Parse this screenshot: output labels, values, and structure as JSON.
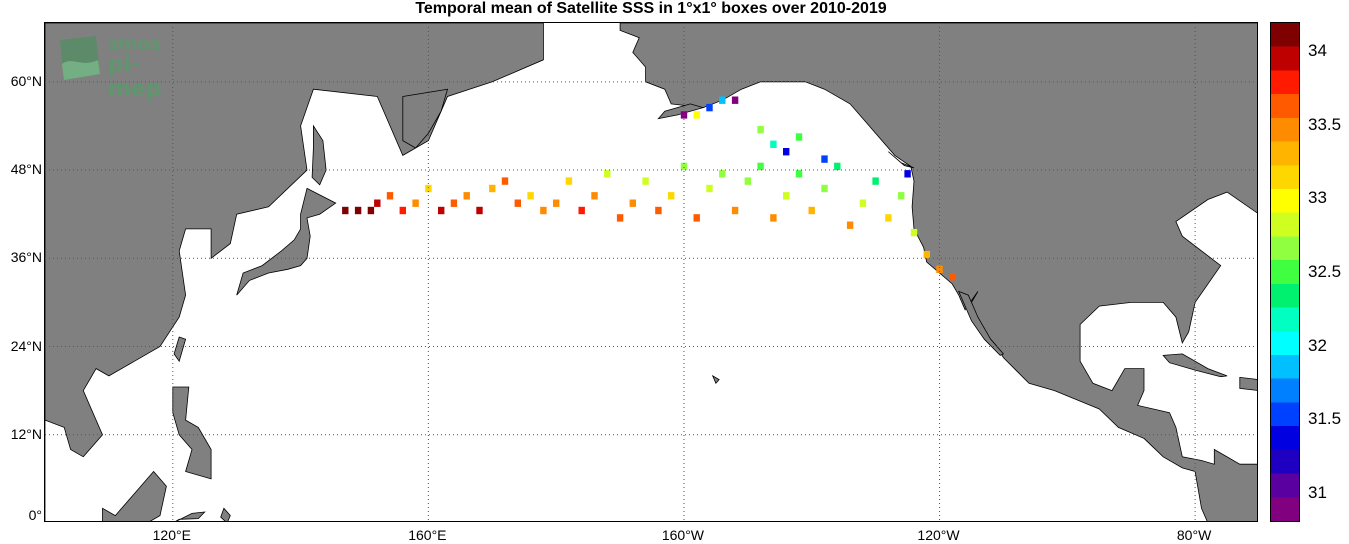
{
  "title": "Temporal mean of Satellite SSS in 1°x1° boxes over 2010-2019",
  "logo": {
    "line1": "smos",
    "line2": "pi-mep"
  },
  "lat_labels": [
    "60°N",
    "48°N",
    "36°N",
    "24°N",
    "12°N",
    "0°"
  ],
  "lon_labels": [
    "120°E",
    "160°E",
    "160°W",
    "120°W",
    "80°W"
  ],
  "colorbar": {
    "ticks": [
      "34",
      "33.5",
      "33",
      "32.5",
      "32",
      "31.5",
      "31"
    ],
    "colors": [
      "#7f0000",
      "#bf0000",
      "#ff1a00",
      "#ff5a00",
      "#ff8c00",
      "#ffb400",
      "#ffd700",
      "#ffff00",
      "#cfff20",
      "#90ff40",
      "#40ff40",
      "#00f070",
      "#00ffc0",
      "#00ffff",
      "#00c0ff",
      "#0080ff",
      "#0040ff",
      "#0000e0",
      "#2000c0",
      "#5a00a0",
      "#800080"
    ]
  },
  "colors": {
    "land": "#808080",
    "ocean": "#ffffff",
    "grid": "#555555"
  },
  "chart_data": {
    "type": "heatmap",
    "title": "Temporal mean of Satellite SSS in 1°x1° boxes over 2010-2019",
    "variable": "Satellite SSS (temporal mean)",
    "period": "2010-2019",
    "grid_resolution_deg": 1,
    "colorbar_range": [
      30.8,
      34.2
    ],
    "extent": {
      "lon_min": 100,
      "lon_max": 290,
      "lat_min": 0,
      "lat_max": 68
    },
    "lat_ticks": [
      0,
      12,
      24,
      36,
      48,
      60
    ],
    "lon_ticks": [
      120,
      160,
      200,
      240,
      280
    ],
    "points": [
      {
        "lon": 147,
        "lat": 42.5,
        "sss": 34.2
      },
      {
        "lon": 149,
        "lat": 42.5,
        "sss": 34.2
      },
      {
        "lon": 151,
        "lat": 42.5,
        "sss": 34.1
      },
      {
        "lon": 152,
        "lat": 43.5,
        "sss": 33.9
      },
      {
        "lon": 154,
        "lat": 44.5,
        "sss": 33.6
      },
      {
        "lon": 156,
        "lat": 42.5,
        "sss": 33.8
      },
      {
        "lon": 158,
        "lat": 43.5,
        "sss": 33.4
      },
      {
        "lon": 160,
        "lat": 45.5,
        "sss": 33.2
      },
      {
        "lon": 162,
        "lat": 42.5,
        "sss": 33.9
      },
      {
        "lon": 164,
        "lat": 43.5,
        "sss": 33.6
      },
      {
        "lon": 166,
        "lat": 44.5,
        "sss": 33.5
      },
      {
        "lon": 168,
        "lat": 42.5,
        "sss": 33.9
      },
      {
        "lon": 170,
        "lat": 45.5,
        "sss": 33.3
      },
      {
        "lon": 172,
        "lat": 46.5,
        "sss": 33.6
      },
      {
        "lon": 174,
        "lat": 43.5,
        "sss": 33.7
      },
      {
        "lon": 176,
        "lat": 44.5,
        "sss": 33.2
      },
      {
        "lon": 178,
        "lat": 42.5,
        "sss": 33.5
      },
      {
        "lon": 180,
        "lat": 43.5,
        "sss": 33.4
      },
      {
        "lon": 182,
        "lat": 46.5,
        "sss": 33.1
      },
      {
        "lon": 184,
        "lat": 42.5,
        "sss": 33.8
      },
      {
        "lon": 186,
        "lat": 44.5,
        "sss": 33.4
      },
      {
        "lon": 188,
        "lat": 47.5,
        "sss": 32.9
      },
      {
        "lon": 190,
        "lat": 41.5,
        "sss": 33.7
      },
      {
        "lon": 192,
        "lat": 43.5,
        "sss": 33.5
      },
      {
        "lon": 194,
        "lat": 46.5,
        "sss": 32.8
      },
      {
        "lon": 196,
        "lat": 42.5,
        "sss": 33.6
      },
      {
        "lon": 198,
        "lat": 44.5,
        "sss": 33.2
      },
      {
        "lon": 200,
        "lat": 48.5,
        "sss": 32.7
      },
      {
        "lon": 202,
        "lat": 41.5,
        "sss": 33.6
      },
      {
        "lon": 204,
        "lat": 45.5,
        "sss": 32.9
      },
      {
        "lon": 206,
        "lat": 47.5,
        "sss": 32.6
      },
      {
        "lon": 208,
        "lat": 42.5,
        "sss": 33.4
      },
      {
        "lon": 210,
        "lat": 46.5,
        "sss": 32.7
      },
      {
        "lon": 212,
        "lat": 48.5,
        "sss": 32.5
      },
      {
        "lon": 214,
        "lat": 41.5,
        "sss": 33.5
      },
      {
        "lon": 216,
        "lat": 44.5,
        "sss": 32.9
      },
      {
        "lon": 218,
        "lat": 47.5,
        "sss": 32.5
      },
      {
        "lon": 220,
        "lat": 42.5,
        "sss": 33.3
      },
      {
        "lon": 222,
        "lat": 45.5,
        "sss": 32.6
      },
      {
        "lon": 224,
        "lat": 48.5,
        "sss": 32.3
      },
      {
        "lon": 226,
        "lat": 40.5,
        "sss": 33.4
      },
      {
        "lon": 228,
        "lat": 43.5,
        "sss": 32.9
      },
      {
        "lon": 230,
        "lat": 46.5,
        "sss": 32.4
      },
      {
        "lon": 232,
        "lat": 41.5,
        "sss": 33.1
      },
      {
        "lon": 234,
        "lat": 44.5,
        "sss": 32.6
      },
      {
        "lon": 235,
        "lat": 47.5,
        "sss": 31.4
      },
      {
        "lon": 236,
        "lat": 39.5,
        "sss": 32.9
      },
      {
        "lon": 238,
        "lat": 36.5,
        "sss": 33.3
      },
      {
        "lon": 240,
        "lat": 34.5,
        "sss": 33.5
      },
      {
        "lon": 242,
        "lat": 33.5,
        "sss": 33.6
      },
      {
        "lon": 200,
        "lat": 55.5,
        "sss": 30.9
      },
      {
        "lon": 202,
        "lat": 55.5,
        "sss": 33.0
      },
      {
        "lon": 204,
        "lat": 56.5,
        "sss": 31.6
      },
      {
        "lon": 206,
        "lat": 57.5,
        "sss": 31.8
      },
      {
        "lon": 208,
        "lat": 57.5,
        "sss": 30.9
      },
      {
        "lon": 212,
        "lat": 53.5,
        "sss": 32.6
      },
      {
        "lon": 214,
        "lat": 51.5,
        "sss": 32.2
      },
      {
        "lon": 216,
        "lat": 50.5,
        "sss": 31.4
      },
      {
        "lon": 218,
        "lat": 52.5,
        "sss": 32.5
      },
      {
        "lon": 222,
        "lat": 49.5,
        "sss": 31.5
      }
    ]
  }
}
